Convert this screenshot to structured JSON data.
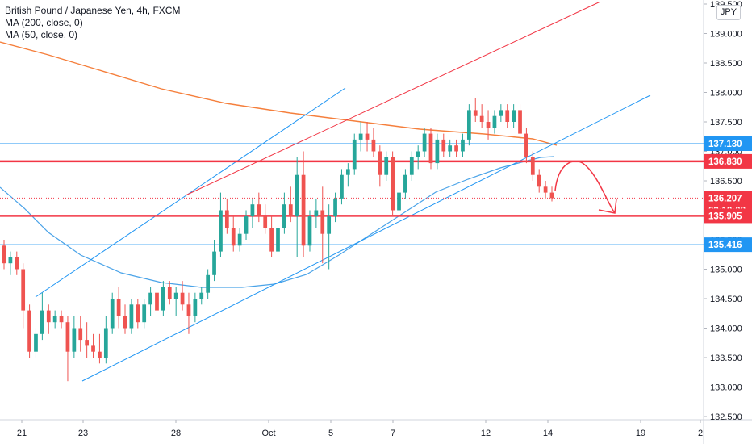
{
  "chart_data": {
    "type": "candlestick",
    "title": "British Pound / Japanese Yen, 4h, FXCM",
    "indicators": [
      {
        "name": "MA (200, close, 0)",
        "color": "#f57f3c"
      },
      {
        "name": "MA (50, close, 0)",
        "color": "#4aa3e8"
      }
    ],
    "currency": "JPY",
    "ylim": [
      132.5,
      139.5
    ],
    "y_ticks": [
      "132.500",
      "133.000",
      "133.500",
      "134.000",
      "134.500",
      "135.000",
      "135.500",
      "136.000",
      "136.500",
      "137.000",
      "137.500",
      "138.000",
      "138.500",
      "139.000",
      "139.500"
    ],
    "x_ticks": [
      "21",
      "23",
      "28",
      "Oct",
      "5",
      "7",
      "12",
      "14",
      "19",
      "2"
    ],
    "price_labels": [
      {
        "text": "137.130",
        "value": 137.13,
        "color": "#2196f3"
      },
      {
        "text": "136.830",
        "value": 136.83,
        "color": "#f23645"
      },
      {
        "text": "136.207",
        "value": 136.207,
        "color": "#f23645"
      },
      {
        "text": "03:19:08",
        "value": 136.0,
        "color": "#f23645"
      },
      {
        "text": "135.905",
        "value": 135.905,
        "color": "#f23645"
      },
      {
        "text": "135.416",
        "value": 135.416,
        "color": "#2196f3"
      }
    ],
    "horizontal_lines": [
      {
        "value": 137.13,
        "color": "#2196f3",
        "style": "thin"
      },
      {
        "value": 136.83,
        "color": "#f23645",
        "style": "thick"
      },
      {
        "value": 135.905,
        "color": "#f23645",
        "style": "thick"
      },
      {
        "value": 135.416,
        "color": "#2196f3",
        "style": "thin"
      },
      {
        "value": 136.207,
        "color": "#f23645",
        "style": "dotted"
      }
    ],
    "candles": [
      [
        135.4,
        135.5,
        135.0,
        135.1
      ],
      [
        135.1,
        135.3,
        134.9,
        135.2
      ],
      [
        135.2,
        135.3,
        134.9,
        135.0
      ],
      [
        135.0,
        135.1,
        134.0,
        134.3
      ],
      [
        134.3,
        134.4,
        133.5,
        133.6
      ],
      [
        133.6,
        134.0,
        133.5,
        133.9
      ],
      [
        133.9,
        134.6,
        133.8,
        134.3
      ],
      [
        134.3,
        134.4,
        133.9,
        134.1
      ],
      [
        134.1,
        134.3,
        134.0,
        134.2
      ],
      [
        134.2,
        134.3,
        134.0,
        134.1
      ],
      [
        134.1,
        134.2,
        133.1,
        133.6
      ],
      [
        133.6,
        134.2,
        133.5,
        134.0
      ],
      [
        134.0,
        134.2,
        133.6,
        133.8
      ],
      [
        133.8,
        134.1,
        133.5,
        133.7
      ],
      [
        133.7,
        133.9,
        133.5,
        133.6
      ],
      [
        133.6,
        133.9,
        133.4,
        133.5
      ],
      [
        133.5,
        134.2,
        133.4,
        134.0
      ],
      [
        134.0,
        134.6,
        133.9,
        134.5
      ],
      [
        134.5,
        134.7,
        134.0,
        134.2
      ],
      [
        134.2,
        134.4,
        133.9,
        134.0
      ],
      [
        134.0,
        134.5,
        133.9,
        134.4
      ],
      [
        134.4,
        134.5,
        134.0,
        134.1
      ],
      [
        134.1,
        134.5,
        134.0,
        134.4
      ],
      [
        134.4,
        134.7,
        134.2,
        134.6
      ],
      [
        134.6,
        134.7,
        134.2,
        134.3
      ],
      [
        134.3,
        134.8,
        134.2,
        134.7
      ],
      [
        134.7,
        134.8,
        134.4,
        134.5
      ],
      [
        134.5,
        134.7,
        134.2,
        134.6
      ],
      [
        134.6,
        134.8,
        134.3,
        134.4
      ],
      [
        134.4,
        134.6,
        133.9,
        134.2
      ],
      [
        134.2,
        134.6,
        134.1,
        134.5
      ],
      [
        134.5,
        134.7,
        134.4,
        134.6
      ],
      [
        134.6,
        135.0,
        134.5,
        134.9
      ],
      [
        134.9,
        135.5,
        134.8,
        135.3
      ],
      [
        135.3,
        136.3,
        135.2,
        136.0
      ],
      [
        136.0,
        136.2,
        135.6,
        135.7
      ],
      [
        135.7,
        135.9,
        135.3,
        135.4
      ],
      [
        135.4,
        135.7,
        135.3,
        135.6
      ],
      [
        135.6,
        136.0,
        135.5,
        135.9
      ],
      [
        135.9,
        136.2,
        135.7,
        136.1
      ],
      [
        136.1,
        136.3,
        135.8,
        135.9
      ],
      [
        135.9,
        136.1,
        135.6,
        135.7
      ],
      [
        135.7,
        135.9,
        135.2,
        135.3
      ],
      [
        135.3,
        135.8,
        135.2,
        135.7
      ],
      [
        135.7,
        136.3,
        135.6,
        136.1
      ],
      [
        136.1,
        136.4,
        135.8,
        135.9
      ],
      [
        135.9,
        136.9,
        135.2,
        136.6
      ],
      [
        136.6,
        137.0,
        135.2,
        135.4
      ],
      [
        135.4,
        136.0,
        135.3,
        135.9
      ],
      [
        135.9,
        136.2,
        135.7,
        136.0
      ],
      [
        136.0,
        136.4,
        135.1,
        135.6
      ],
      [
        135.6,
        136.1,
        135.0,
        135.9
      ],
      [
        135.9,
        136.3,
        135.8,
        136.2
      ],
      [
        136.2,
        136.7,
        136.1,
        136.6
      ],
      [
        136.6,
        136.8,
        136.4,
        136.7
      ],
      [
        136.7,
        137.3,
        136.6,
        137.2
      ],
      [
        137.2,
        137.5,
        137.0,
        137.3
      ],
      [
        137.3,
        137.5,
        137.0,
        137.2
      ],
      [
        137.2,
        137.4,
        136.9,
        137.0
      ],
      [
        137.0,
        137.1,
        136.4,
        136.6
      ],
      [
        136.6,
        137.0,
        136.5,
        136.9
      ],
      [
        136.9,
        137.0,
        135.9,
        136.0
      ],
      [
        136.0,
        136.5,
        135.9,
        136.3
      ],
      [
        136.3,
        136.7,
        136.2,
        136.6
      ],
      [
        136.6,
        137.0,
        136.5,
        136.9
      ],
      [
        136.9,
        137.1,
        136.7,
        137.0
      ],
      [
        137.0,
        137.4,
        136.9,
        137.3
      ],
      [
        137.3,
        137.4,
        136.7,
        136.8
      ],
      [
        136.8,
        137.3,
        136.7,
        137.2
      ],
      [
        137.2,
        137.3,
        136.9,
        137.0
      ],
      [
        137.0,
        137.2,
        136.9,
        137.1
      ],
      [
        137.1,
        137.2,
        136.9,
        137.0
      ],
      [
        137.0,
        137.3,
        136.9,
        137.2
      ],
      [
        137.2,
        137.8,
        137.1,
        137.7
      ],
      [
        137.7,
        137.9,
        137.5,
        137.6
      ],
      [
        137.6,
        137.8,
        137.4,
        137.5
      ],
      [
        137.5,
        137.7,
        137.2,
        137.4
      ],
      [
        137.4,
        137.7,
        137.3,
        137.6
      ],
      [
        137.6,
        137.8,
        137.5,
        137.7
      ],
      [
        137.7,
        137.8,
        137.4,
        137.5
      ],
      [
        137.5,
        137.8,
        137.4,
        137.7
      ],
      [
        137.7,
        137.8,
        137.1,
        137.3
      ],
      [
        137.3,
        137.4,
        136.8,
        136.9
      ],
      [
        136.9,
        137.0,
        136.5,
        136.6
      ],
      [
        136.6,
        136.7,
        136.3,
        136.4
      ],
      [
        136.4,
        136.5,
        136.2,
        136.3
      ],
      [
        136.3,
        136.4,
        136.15,
        136.207
      ]
    ]
  }
}
